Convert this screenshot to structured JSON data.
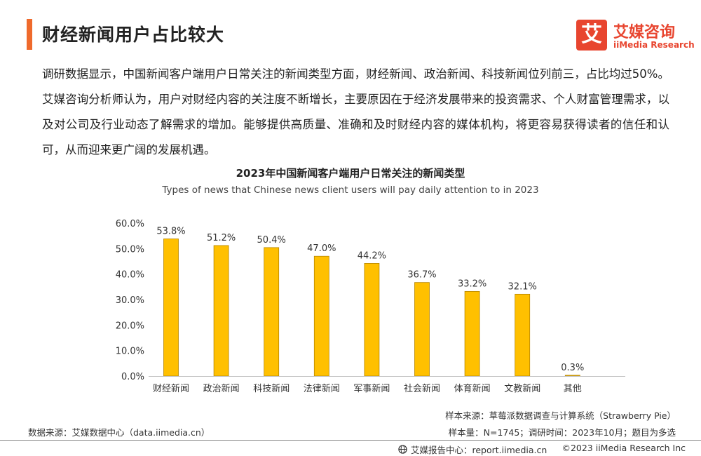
{
  "header": {
    "title": "财经新闻用户占比较大",
    "accent_color": "#ef6a2c"
  },
  "logo": {
    "glyph": "艾",
    "name_cn": "艾媒咨询",
    "name_en": "iiMedia Research",
    "color": "#e8452f"
  },
  "body": {
    "paragraph": "调研数据显示，中国新闻客户端用户日常关注的新闻类型方面，财经新闻、政治新闻、科技新闻位列前三，占比均过50%。艾媒咨询分析师认为，用户对财经内容的关注度不断增长，主要原因在于经济发展带来的投资需求、个人财富管理需求，以及对公司及行业动态了解需求的增加。能够提供高质量、准确和及时财经内容的媒体机构，将更容易获得读者的信任和认可，从而迎来更广阔的发展机遇。"
  },
  "chart_data": {
    "type": "bar",
    "title": "2023年中国新闻客户端用户日常关注的新闻类型",
    "subtitle": "Types of news that Chinese news client users will pay daily attention to in 2023",
    "categories": [
      "财经新闻",
      "政治新闻",
      "科技新闻",
      "法律新闻",
      "军事新闻",
      "社会新闻",
      "体育新闻",
      "文教新闻",
      "其他"
    ],
    "values": [
      53.8,
      51.2,
      50.4,
      47.0,
      44.2,
      36.7,
      33.2,
      32.1,
      0.3
    ],
    "value_labels": [
      "53.8%",
      "51.2%",
      "50.4%",
      "47.0%",
      "44.2%",
      "36.7%",
      "33.2%",
      "32.1%",
      "0.3%"
    ],
    "ylim": [
      0,
      60
    ],
    "yticks": [
      "0.0%",
      "10.0%",
      "20.0%",
      "30.0%",
      "40.0%",
      "50.0%",
      "60.0%"
    ],
    "grid": false,
    "legend": "none",
    "bar_color": "#ffc000",
    "bar_edge_color": "#b58500"
  },
  "notes": {
    "sample_source": "样本来源：草莓派数据调查与计算系统（Strawberry Pie）",
    "sample_size": "样本量：N=1745；调研时间：2023年10月；题目为多选",
    "data_source": "数据来源：艾媒数据中心（data.iimedia.cn）"
  },
  "footer": {
    "report_center": "艾媒报告中心：report.iimedia.cn",
    "copyright": "©2023  iiMedia Research  Inc"
  }
}
